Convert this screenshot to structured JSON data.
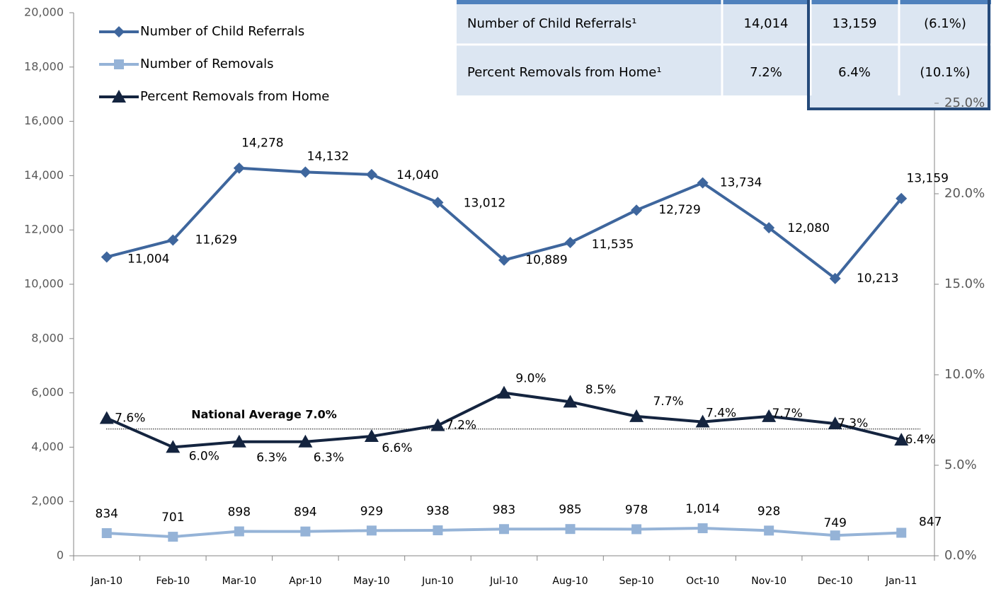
{
  "chart_data": {
    "type": "line",
    "categories": [
      "Jan-10",
      "Feb-10",
      "Mar-10",
      "Apr-10",
      "May-10",
      "Jun-10",
      "Jul-10",
      "Aug-10",
      "Sep-10",
      "Oct-10",
      "Nov-10",
      "Dec-10",
      "Jan-11"
    ],
    "series": [
      {
        "name": "Number of Child Referrals",
        "color": "#3e669d",
        "marker": "diamond",
        "values": [
          11004,
          11629,
          14278,
          14132,
          14040,
          13012,
          10889,
          11535,
          12729,
          13734,
          12080,
          10213,
          13159
        ],
        "value_labels": [
          "11,004",
          "11,629",
          "14,278",
          "14,132",
          "14,040",
          "13,012",
          "10,889",
          "11,535",
          "12,729",
          "13,734",
          "12,080",
          "10,213",
          "13,159"
        ]
      },
      {
        "name": "Number of Removals",
        "color": "#95b3d7",
        "marker": "square",
        "values": [
          834,
          701,
          898,
          894,
          929,
          938,
          983,
          985,
          978,
          1014,
          928,
          749,
          847
        ],
        "value_labels": [
          "834",
          "701",
          "898",
          "894",
          "929",
          "938",
          "983",
          "985",
          "978",
          "1,014",
          "928",
          "749",
          "847"
        ]
      },
      {
        "name": "Percent Removals from Home",
        "color": "#14243f",
        "marker": "triangle",
        "axis": "y2",
        "values": [
          7.6,
          6.0,
          6.3,
          6.3,
          6.6,
          7.2,
          9.0,
          8.5,
          7.7,
          7.4,
          7.7,
          7.3,
          6.4
        ],
        "value_labels": [
          "7.6%",
          "6.0%",
          "6.3%",
          "6.3%",
          "6.6%",
          "7.2%",
          "9.0%",
          "8.5%",
          "7.7%",
          "7.4%",
          "7.7%",
          "7.3%",
          "6.4%"
        ]
      }
    ],
    "ylim": [
      0,
      20000
    ],
    "yticks": [
      0,
      {
        "value": 2000,
        "label": "2,000"
      },
      {
        "value": 4000,
        "label": "4,000"
      },
      {
        "value": 6000,
        "label": "6,000"
      },
      {
        "value": 8000,
        "label": "8,000"
      },
      {
        "value": 10000,
        "label": "10,000"
      },
      {
        "value": 12000,
        "label": "12,000"
      },
      {
        "value": 14000,
        "label": "14,000"
      },
      {
        "value": 16000,
        "label": "16,000"
      },
      {
        "value": 18000,
        "label": "18,000"
      },
      {
        "value": 20000,
        "label": "20,000"
      }
    ],
    "y2lim": [
      0,
      30
    ],
    "y2ticks": [
      {
        "value": 0,
        "label": "0.0%"
      },
      {
        "value": 5,
        "label": "5.0%"
      },
      {
        "value": 10,
        "label": "10.0%"
      },
      {
        "value": 15,
        "label": "15.0%"
      },
      {
        "value": 20,
        "label": "20.0%"
      },
      {
        "value": 25,
        "label": "25.0%"
      }
    ],
    "national_average": {
      "value": 7.0,
      "label": "National Average 7.0%"
    },
    "legend": "upper left"
  },
  "table": {
    "rows": [
      [
        "Number of Child Referrals¹",
        "14,014",
        "13,159",
        "(6.1%)"
      ],
      [
        "Percent Removals from Home¹",
        "7.2%",
        "6.4%",
        "(10.1%)"
      ]
    ]
  }
}
